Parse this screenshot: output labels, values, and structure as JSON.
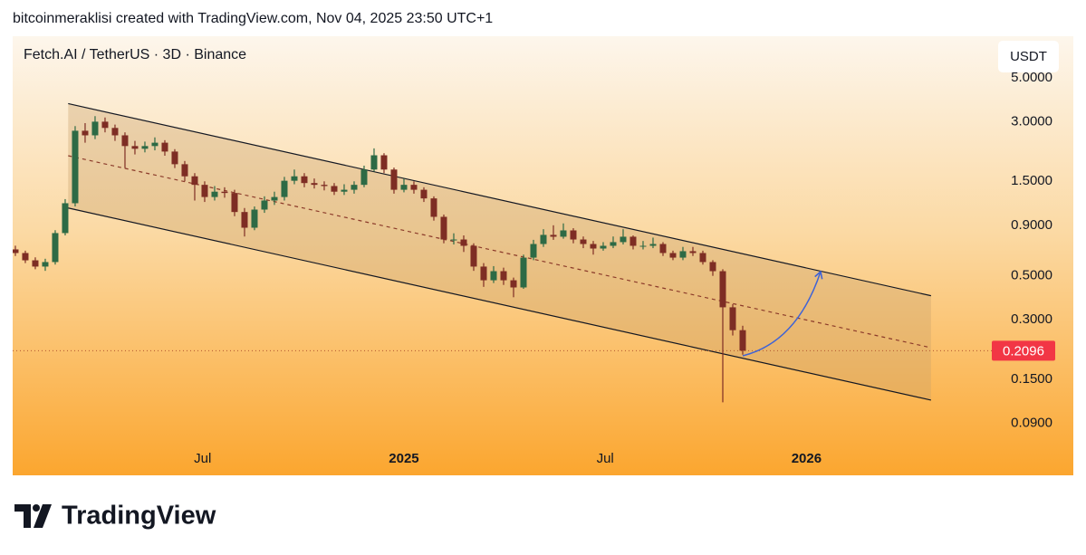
{
  "chart_data": {
    "type": "candlestick",
    "header": "bitcoinmeraklisi created with TradingView.com, Nov 04, 2025 23:50 UTC+1",
    "title": "Fetch.AI / TetherUS · 3D · Binance",
    "currency": "USDT",
    "brand": "TradingView",
    "log_scale": true,
    "grid": false,
    "up_color": "#2d6a45",
    "down_color": "#7e2d24",
    "xlim": [
      -0.27,
      98
    ],
    "xticks": [
      {
        "value": 18.8,
        "label": "Jul"
      },
      {
        "value": 39,
        "label": "2025"
      },
      {
        "value": 59.2,
        "label": "Jul"
      },
      {
        "value": 79.4,
        "label": "2026"
      }
    ],
    "ylim": [
      0.075,
      8.1
    ],
    "yticks": [
      {
        "value": 5,
        "label": "5.0000"
      },
      {
        "value": 3,
        "label": "3.0000"
      },
      {
        "value": 1.5,
        "label": "1.5000"
      },
      {
        "value": 0.9,
        "label": "0.9000"
      },
      {
        "value": 0.5,
        "label": "0.5000"
      },
      {
        "value": 0.3,
        "label": "0.3000"
      },
      {
        "value": 0.15,
        "label": "0.1500"
      },
      {
        "value": 0.09,
        "label": "0.0900"
      }
    ],
    "last_price": 0.2096,
    "last_price_color": "#f23645",
    "channel": {
      "upper": {
        "x": [
          5.3,
          91.9
        ],
        "y": [
          3.7,
          0.397
        ]
      },
      "middle": {
        "x": [
          5.3,
          91.9
        ],
        "y": [
          2.02,
          0.217
        ]
      },
      "lower": {
        "x": [
          5.3,
          91.9
        ],
        "y": [
          1.1,
          0.118
        ]
      },
      "fill": "#c9a06a"
    },
    "candles": [
      [
        0.68,
        0.71,
        0.63,
        0.652
      ],
      [
        0.652,
        0.67,
        0.58,
        0.599
      ],
      [
        0.599,
        0.62,
        0.54,
        0.557
      ],
      [
        0.557,
        0.61,
        0.53,
        0.587
      ],
      [
        0.587,
        0.85,
        0.57,
        0.822
      ],
      [
        0.822,
        1.22,
        0.8,
        1.163
      ],
      [
        1.163,
        2.85,
        1.12,
        2.7
      ],
      [
        2.7,
        2.95,
        2.35,
        2.56
      ],
      [
        2.56,
        3.2,
        2.45,
        3.0
      ],
      [
        3.0,
        3.15,
        2.65,
        2.79
      ],
      [
        2.79,
        2.9,
        2.4,
        2.56
      ],
      [
        2.56,
        2.65,
        1.75,
        2.26
      ],
      [
        2.26,
        2.4,
        2.05,
        2.19
      ],
      [
        2.19,
        2.38,
        2.1,
        2.26
      ],
      [
        2.26,
        2.5,
        2.15,
        2.35
      ],
      [
        2.35,
        2.42,
        2.02,
        2.12
      ],
      [
        2.12,
        2.18,
        1.75,
        1.83
      ],
      [
        1.83,
        1.9,
        1.5,
        1.59
      ],
      [
        1.59,
        1.65,
        1.2,
        1.44
      ],
      [
        1.44,
        1.5,
        1.18,
        1.25
      ],
      [
        1.25,
        1.42,
        1.2,
        1.33
      ],
      [
        1.33,
        1.4,
        1.24,
        1.31
      ],
      [
        1.31,
        1.36,
        1.0,
        1.05
      ],
      [
        1.05,
        1.1,
        0.79,
        0.875
      ],
      [
        0.875,
        1.12,
        0.85,
        1.08
      ],
      [
        1.08,
        1.26,
        1.04,
        1.2
      ],
      [
        1.2,
        1.33,
        1.14,
        1.25
      ],
      [
        1.25,
        1.58,
        1.2,
        1.51
      ],
      [
        1.51,
        1.72,
        1.45,
        1.59
      ],
      [
        1.59,
        1.65,
        1.4,
        1.47
      ],
      [
        1.47,
        1.55,
        1.38,
        1.44
      ],
      [
        1.44,
        1.5,
        1.35,
        1.42
      ],
      [
        1.42,
        1.47,
        1.28,
        1.33
      ],
      [
        1.33,
        1.45,
        1.28,
        1.36
      ],
      [
        1.36,
        1.5,
        1.3,
        1.44
      ],
      [
        1.44,
        1.8,
        1.4,
        1.72
      ],
      [
        1.72,
        2.2,
        1.68,
        2.03
      ],
      [
        2.03,
        2.08,
        1.65,
        1.72
      ],
      [
        1.72,
        1.76,
        1.3,
        1.36
      ],
      [
        1.36,
        1.55,
        1.32,
        1.44
      ],
      [
        1.44,
        1.5,
        1.3,
        1.36
      ],
      [
        1.36,
        1.4,
        1.18,
        1.23
      ],
      [
        1.23,
        1.26,
        0.95,
        0.993
      ],
      [
        0.993,
        1.02,
        0.73,
        0.763
      ],
      [
        0.763,
        0.82,
        0.72,
        0.763
      ],
      [
        0.763,
        0.8,
        0.66,
        0.709
      ],
      [
        0.709,
        0.73,
        0.53,
        0.557
      ],
      [
        0.557,
        0.58,
        0.44,
        0.475
      ],
      [
        0.475,
        0.56,
        0.46,
        0.528
      ],
      [
        0.528,
        0.55,
        0.45,
        0.475
      ],
      [
        0.475,
        0.49,
        0.39,
        0.437
      ],
      [
        0.437,
        0.64,
        0.43,
        0.618
      ],
      [
        0.618,
        0.76,
        0.6,
        0.724
      ],
      [
        0.724,
        0.86,
        0.7,
        0.805
      ],
      [
        0.805,
        0.9,
        0.76,
        0.788
      ],
      [
        0.788,
        0.92,
        0.77,
        0.848
      ],
      [
        0.848,
        0.87,
        0.73,
        0.763
      ],
      [
        0.763,
        0.79,
        0.69,
        0.724
      ],
      [
        0.724,
        0.75,
        0.64,
        0.687
      ],
      [
        0.687,
        0.74,
        0.67,
        0.709
      ],
      [
        0.709,
        0.79,
        0.69,
        0.74
      ],
      [
        0.74,
        0.86,
        0.72,
        0.788
      ],
      [
        0.788,
        0.8,
        0.68,
        0.709
      ],
      [
        0.709,
        0.75,
        0.68,
        0.709
      ],
      [
        0.709,
        0.78,
        0.69,
        0.724
      ],
      [
        0.724,
        0.74,
        0.63,
        0.652
      ],
      [
        0.652,
        0.67,
        0.6,
        0.618
      ],
      [
        0.618,
        0.7,
        0.6,
        0.666
      ],
      [
        0.666,
        0.7,
        0.63,
        0.652
      ],
      [
        0.652,
        0.67,
        0.57,
        0.587
      ],
      [
        0.587,
        0.6,
        0.5,
        0.528
      ],
      [
        0.528,
        0.54,
        0.115,
        0.347
      ],
      [
        0.347,
        0.36,
        0.25,
        0.266
      ],
      [
        0.266,
        0.28,
        0.2,
        0.2096
      ]
    ]
  }
}
